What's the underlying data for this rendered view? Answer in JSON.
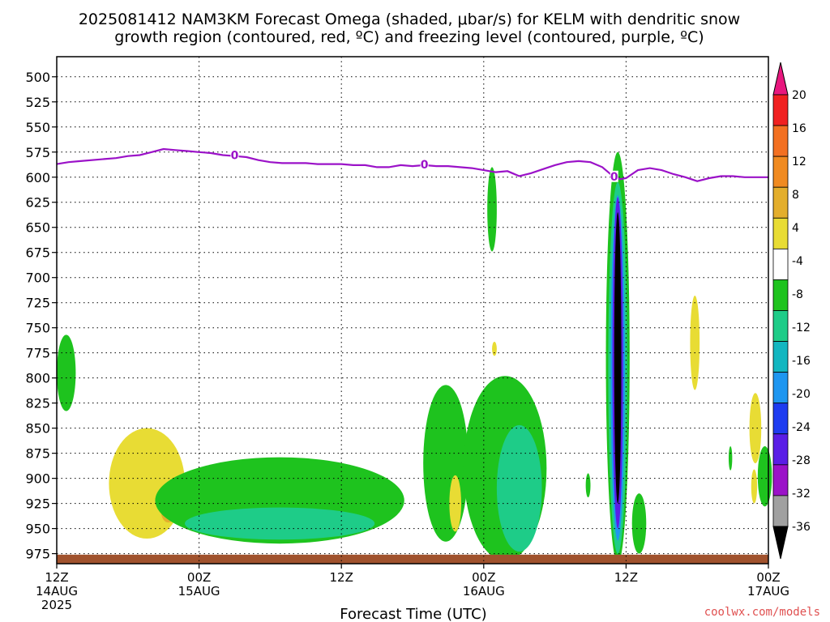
{
  "chart_data": {
    "type": "heatmap",
    "title_lines": [
      "2025081412 NAM3KM Forecast Omega (shaded, μbar/s) for KELM with dendritic snow",
      "growth region (contoured, red, ºC) and freezing level (contoured, purple, ºC)"
    ],
    "xlabel": "Forecast Time (UTC)",
    "credit": "coolwx.com/models",
    "x_range_hours": [
      0,
      60
    ],
    "x_ticks": [
      {
        "hour": 0,
        "lines": [
          "12Z",
          "14AUG",
          "2025"
        ]
      },
      {
        "hour": 12,
        "lines": [
          "00Z",
          "15AUG"
        ]
      },
      {
        "hour": 24,
        "lines": [
          "12Z"
        ]
      },
      {
        "hour": 36,
        "lines": [
          "00Z",
          "16AUG"
        ]
      },
      {
        "hour": 48,
        "lines": [
          "12Z"
        ]
      },
      {
        "hour": 60,
        "lines": [
          "00Z",
          "17AUG"
        ]
      }
    ],
    "y_range_hpa": [
      985,
      480
    ],
    "y_ticks": [
      500,
      525,
      550,
      575,
      600,
      625,
      650,
      675,
      700,
      725,
      750,
      775,
      800,
      825,
      850,
      875,
      900,
      925,
      950,
      975
    ],
    "colorbar": {
      "labels": [
        "20",
        "16",
        "12",
        "8",
        "4",
        "-4",
        "-8",
        "-12",
        "-16",
        "-20",
        "-24",
        "-28",
        "-32",
        "-36"
      ],
      "colors": [
        "#e8177e",
        "#f02020",
        "#f37021",
        "#f08a20",
        "#e3ae2c",
        "#e8dc34",
        "#ffffff",
        "#1ec31e",
        "#1ecc88",
        "#12b6c0",
        "#1e96f0",
        "#1e3cf0",
        "#5a1ee6",
        "#9b12c8",
        "#a0a0a0",
        "#000000"
      ]
    },
    "freezing_level": {
      "label": "0",
      "label_hours": [
        15,
        31,
        47
      ],
      "points": [
        [
          0,
          587
        ],
        [
          1,
          585
        ],
        [
          2,
          584
        ],
        [
          4,
          582
        ],
        [
          5,
          581
        ],
        [
          6,
          579
        ],
        [
          7,
          578
        ],
        [
          8,
          575
        ],
        [
          9,
          572
        ],
        [
          10,
          573
        ],
        [
          11,
          574
        ],
        [
          12,
          575
        ],
        [
          13,
          576
        ],
        [
          14,
          578
        ],
        [
          15,
          579
        ],
        [
          16,
          580
        ],
        [
          17,
          583
        ],
        [
          18,
          585
        ],
        [
          19,
          586
        ],
        [
          20,
          586
        ],
        [
          21,
          586
        ],
        [
          22,
          587
        ],
        [
          23,
          587
        ],
        [
          24,
          587
        ],
        [
          25,
          588
        ],
        [
          26,
          588
        ],
        [
          27,
          590
        ],
        [
          28,
          590
        ],
        [
          29,
          588
        ],
        [
          30,
          589
        ],
        [
          31,
          588
        ],
        [
          32,
          589
        ],
        [
          33,
          589
        ],
        [
          34,
          590
        ],
        [
          35,
          591
        ],
        [
          36,
          593
        ],
        [
          37,
          595
        ],
        [
          38,
          594
        ],
        [
          39,
          599
        ],
        [
          40,
          596
        ],
        [
          41,
          592
        ],
        [
          42,
          588
        ],
        [
          43,
          585
        ],
        [
          44,
          584
        ],
        [
          45,
          585
        ],
        [
          46,
          590
        ],
        [
          47,
          600
        ],
        [
          47.5,
          602
        ],
        [
          48,
          601
        ],
        [
          49,
          593
        ],
        [
          50,
          591
        ],
        [
          51,
          593
        ],
        [
          52,
          597
        ],
        [
          53,
          600
        ],
        [
          54,
          604
        ],
        [
          55,
          601
        ],
        [
          56,
          599
        ],
        [
          57,
          599
        ],
        [
          58,
          600
        ],
        [
          59,
          600
        ],
        [
          60,
          600
        ]
      ]
    },
    "omega_features": [
      {
        "level": "-8",
        "center": [
          0.8,
          795
        ],
        "half_width_hours": 0.8,
        "half_depth_hpa": 38
      },
      {
        "level": "4",
        "center": [
          7.6,
          905
        ],
        "half_width_hours": 3.2,
        "half_depth_hpa": 55
      },
      {
        "level": "8",
        "center": [
          9.4,
          933
        ],
        "half_width_hours": 0.6,
        "half_depth_hpa": 11
      },
      {
        "level": "-8",
        "center": [
          18.8,
          922
        ],
        "half_width_hours": 10.5,
        "half_depth_hpa": 43
      },
      {
        "level": "-12",
        "center": [
          18.8,
          945
        ],
        "half_width_hours": 8.0,
        "half_depth_hpa": 16
      },
      {
        "level": "-8",
        "center": [
          32.8,
          885
        ],
        "half_width_hours": 1.9,
        "half_depth_hpa": 78
      },
      {
        "level": "4",
        "center": [
          33.6,
          925
        ],
        "half_width_hours": 0.5,
        "half_depth_hpa": 28
      },
      {
        "level": "-8",
        "center": [
          37.8,
          890
        ],
        "half_width_hours": 3.5,
        "half_depth_hpa": 92
      },
      {
        "level": "-12",
        "center": [
          39.0,
          910
        ],
        "half_width_hours": 1.9,
        "half_depth_hpa": 63
      },
      {
        "level": "-8",
        "center": [
          36.7,
          632
        ],
        "half_width_hours": 0.4,
        "half_depth_hpa": 42
      },
      {
        "level": "4",
        "center": [
          36.9,
          771
        ],
        "half_width_hours": 0.2,
        "half_depth_hpa": 7
      },
      {
        "level": "-8",
        "center": [
          47.3,
          780
        ],
        "half_width_hours": 1.0,
        "half_depth_hpa": 205
      },
      {
        "level": "-12",
        "center": [
          47.3,
          790
        ],
        "half_width_hours": 0.8,
        "half_depth_hpa": 185
      },
      {
        "level": "-20",
        "center": [
          47.3,
          790
        ],
        "half_width_hours": 0.6,
        "half_depth_hpa": 172
      },
      {
        "level": "-28",
        "center": [
          47.3,
          785
        ],
        "half_width_hours": 0.45,
        "half_depth_hpa": 165
      },
      {
        "level": "-36",
        "center": [
          47.3,
          780
        ],
        "half_width_hours": 0.3,
        "half_depth_hpa": 145
      },
      {
        "level": "-8",
        "center": [
          49.1,
          945
        ],
        "half_width_hours": 0.6,
        "half_depth_hpa": 30
      },
      {
        "level": "-8",
        "center": [
          44.8,
          907
        ],
        "half_width_hours": 0.2,
        "half_depth_hpa": 12
      },
      {
        "level": "4",
        "center": [
          53.8,
          765
        ],
        "half_width_hours": 0.4,
        "half_depth_hpa": 47
      },
      {
        "level": "-8",
        "center": [
          56.8,
          880
        ],
        "half_width_hours": 0.15,
        "half_depth_hpa": 12
      },
      {
        "level": "4",
        "center": [
          58.9,
          850
        ],
        "half_width_hours": 0.5,
        "half_depth_hpa": 35
      },
      {
        "level": "4",
        "center": [
          58.8,
          908
        ],
        "half_width_hours": 0.25,
        "half_depth_hpa": 17
      },
      {
        "level": "-8",
        "center": [
          59.7,
          898
        ],
        "half_width_hours": 0.6,
        "half_depth_hpa": 30
      }
    ],
    "terrain_surface_hpa": 976
  }
}
